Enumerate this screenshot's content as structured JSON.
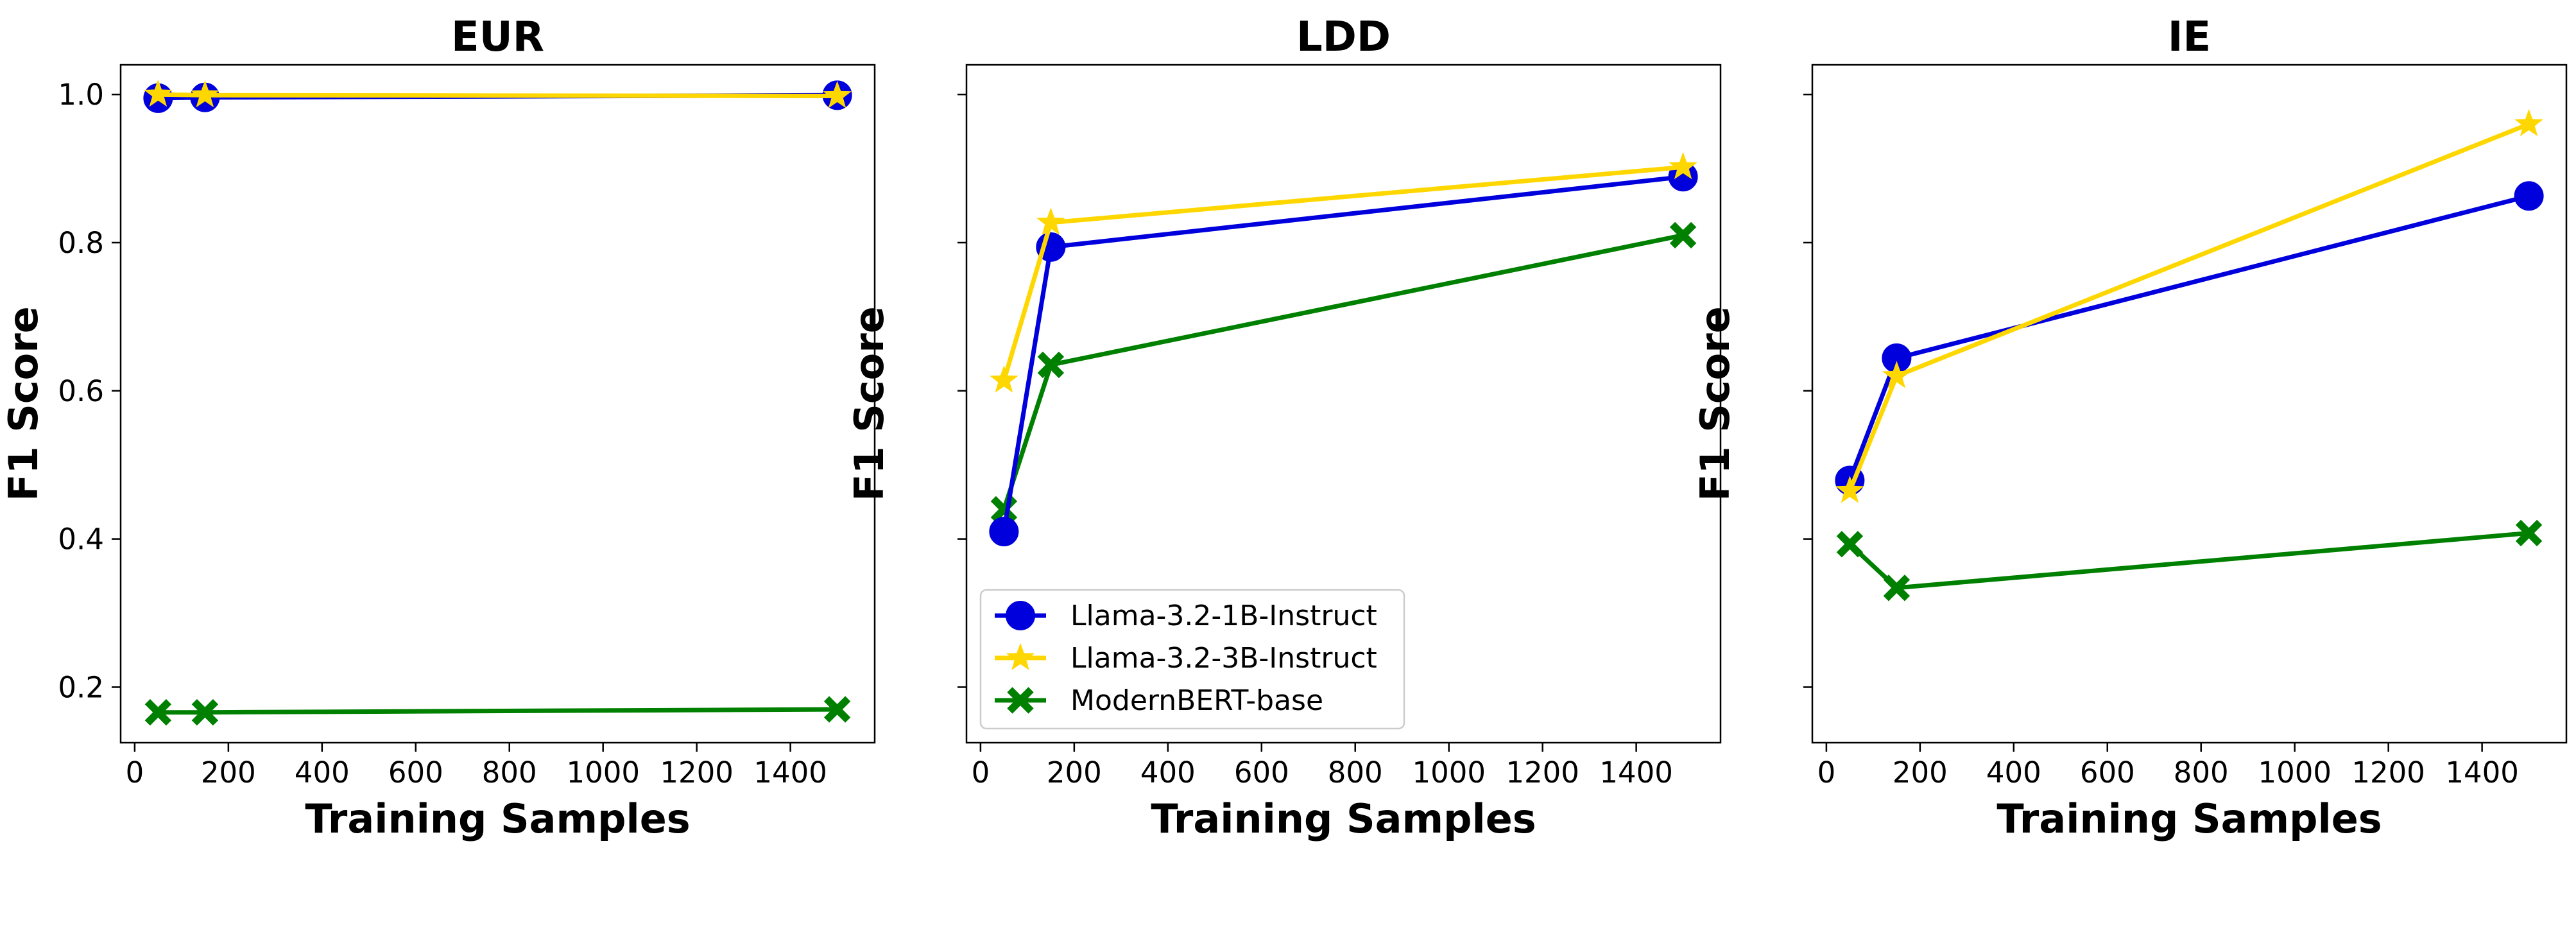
{
  "chart_data": [
    {
      "type": "line",
      "title": "EUR",
      "xlabel": "Training Samples",
      "ylabel": "F1 Score",
      "xlim": [
        -30,
        1580
      ],
      "ylim": [
        0.125,
        1.04
      ],
      "xticks": [
        0,
        200,
        400,
        600,
        800,
        1000,
        1200,
        1400
      ],
      "xtick_labels": [
        "0",
        "200",
        "400",
        "600",
        "800",
        "1000",
        "1200",
        "1400"
      ],
      "yticks": [
        0.2,
        0.4,
        0.6,
        0.8,
        1.0
      ],
      "ytick_labels": [
        "0.2",
        "0.4",
        "0.6",
        "0.8",
        "1.0"
      ],
      "show_ytick_labels": true,
      "x": [
        50,
        150,
        1500
      ],
      "series": [
        {
          "name": "Llama-3.2-1B-Instruct",
          "color": "#0000dd",
          "marker": "circle",
          "values": [
            0.995,
            0.996,
            0.999
          ]
        },
        {
          "name": "Llama-3.2-3B-Instruct",
          "color": "#ffd700",
          "marker": "star",
          "values": [
            1.0,
            0.999,
            0.998
          ]
        },
        {
          "name": "ModernBERT-base",
          "color": "#008000",
          "marker": "x",
          "values": [
            0.166,
            0.166,
            0.17
          ]
        }
      ]
    },
    {
      "type": "line",
      "title": "LDD",
      "xlabel": "Training Samples",
      "ylabel": "F1 Score",
      "xlim": [
        -30,
        1580
      ],
      "ylim": [
        0.125,
        1.04
      ],
      "xticks": [
        0,
        200,
        400,
        600,
        800,
        1000,
        1200,
        1400
      ],
      "xtick_labels": [
        "0",
        "200",
        "400",
        "600",
        "800",
        "1000",
        "1200",
        "1400"
      ],
      "yticks": [
        0.2,
        0.4,
        0.6,
        0.8,
        1.0
      ],
      "ytick_labels": [
        "0.2",
        "0.4",
        "0.6",
        "0.8",
        "1.0"
      ],
      "show_ytick_labels": false,
      "legend": "lower left",
      "x": [
        50,
        150,
        1500
      ],
      "series": [
        {
          "name": "Llama-3.2-1B-Instruct",
          "color": "#0000dd",
          "marker": "circle",
          "values": [
            0.41,
            0.794,
            0.889
          ]
        },
        {
          "name": "Llama-3.2-3B-Instruct",
          "color": "#ffd700",
          "marker": "star",
          "values": [
            0.614,
            0.827,
            0.902
          ]
        },
        {
          "name": "ModernBERT-base",
          "color": "#008000",
          "marker": "x",
          "values": [
            0.44,
            0.635,
            0.81
          ]
        }
      ]
    },
    {
      "type": "line",
      "title": "IE",
      "xlabel": "Training Samples",
      "ylabel": "F1 Score",
      "xlim": [
        -30,
        1580
      ],
      "ylim": [
        0.125,
        1.04
      ],
      "xticks": [
        0,
        200,
        400,
        600,
        800,
        1000,
        1200,
        1400
      ],
      "xtick_labels": [
        "0",
        "200",
        "400",
        "600",
        "800",
        "1000",
        "1200",
        "1400"
      ],
      "yticks": [
        0.2,
        0.4,
        0.6,
        0.8,
        1.0
      ],
      "ytick_labels": [
        "0.2",
        "0.4",
        "0.6",
        "0.8",
        "1.0"
      ],
      "show_ytick_labels": false,
      "x": [
        50,
        150,
        1500
      ],
      "series": [
        {
          "name": "Llama-3.2-1B-Instruct",
          "color": "#0000dd",
          "marker": "circle",
          "values": [
            0.479,
            0.644,
            0.863
          ]
        },
        {
          "name": "Llama-3.2-3B-Instruct",
          "color": "#ffd700",
          "marker": "star",
          "values": [
            0.465,
            0.62,
            0.96
          ]
        },
        {
          "name": "ModernBERT-base",
          "color": "#008000",
          "marker": "x",
          "values": [
            0.393,
            0.334,
            0.408
          ]
        }
      ]
    }
  ]
}
